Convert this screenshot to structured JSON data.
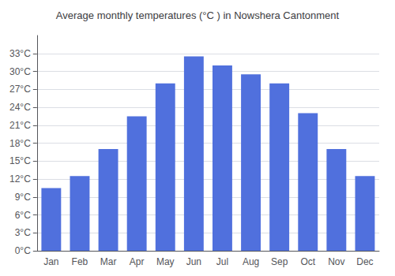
{
  "chart_data": {
    "type": "bar",
    "title": "Average monthly temperatures (°C ) in Nowshera Cantonment",
    "categories": [
      "Jan",
      "Feb",
      "Mar",
      "Apr",
      "May",
      "Jun",
      "Jul",
      "Aug",
      "Sep",
      "Oct",
      "Nov",
      "Dec"
    ],
    "values": [
      10.5,
      12.5,
      17.0,
      22.5,
      28.0,
      32.5,
      31.0,
      29.5,
      28.0,
      23.0,
      17.0,
      12.5
    ],
    "ylim": [
      0,
      36
    ],
    "yticks": [
      {
        "value": 0,
        "label": "0°C"
      },
      {
        "value": 3,
        "label": "3°C"
      },
      {
        "value": 6,
        "label": "6°C"
      },
      {
        "value": 9,
        "label": "9°C"
      },
      {
        "value": 12,
        "label": "12°C"
      },
      {
        "value": 15,
        "label": "15°C"
      },
      {
        "value": 18,
        "label": "18°C"
      },
      {
        "value": 21,
        "label": "21°C"
      },
      {
        "value": 24,
        "label": "24°C"
      },
      {
        "value": 27,
        "label": "27°C"
      },
      {
        "value": 30,
        "label": "30°C"
      },
      {
        "value": 33,
        "label": "33°C"
      }
    ],
    "grid": true
  }
}
